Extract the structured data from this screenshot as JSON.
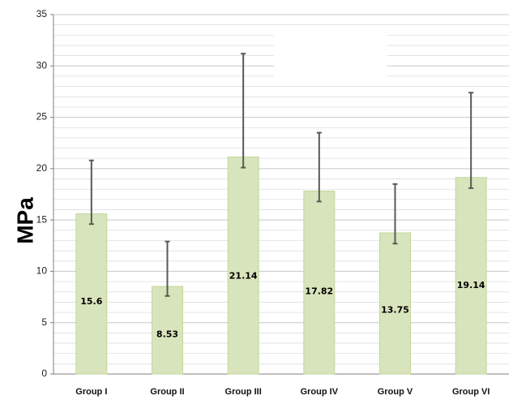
{
  "chart_data": {
    "type": "bar",
    "title": "",
    "xlabel": "",
    "ylabel": "MPa",
    "ylim": [
      0,
      35
    ],
    "yticks": [
      "0",
      "5",
      "10",
      "15",
      "20",
      "25",
      "30",
      "35"
    ],
    "grid": true,
    "categories": [
      "Group I",
      "Group II",
      "Group III",
      "Group IV",
      "Group V",
      "Group VI"
    ],
    "values": [
      15.6,
      8.53,
      21.14,
      17.82,
      13.75,
      19.14
    ],
    "data_labels": [
      "15.6",
      "8.53",
      "21.14",
      "17.82",
      "13.75",
      "19.14"
    ],
    "error_bars": {
      "lower": [
        14.6,
        7.6,
        20.1,
        16.8,
        12.7,
        18.1
      ],
      "upper": [
        20.8,
        12.9,
        31.2,
        23.5,
        18.5,
        27.4
      ]
    },
    "colors": {
      "bar_fill": "#d8e4bc",
      "bar_stroke": "#c4d79b",
      "error_bar": "#595959",
      "grid": "#d9d9d9",
      "axis": "#7f7f7f"
    }
  }
}
